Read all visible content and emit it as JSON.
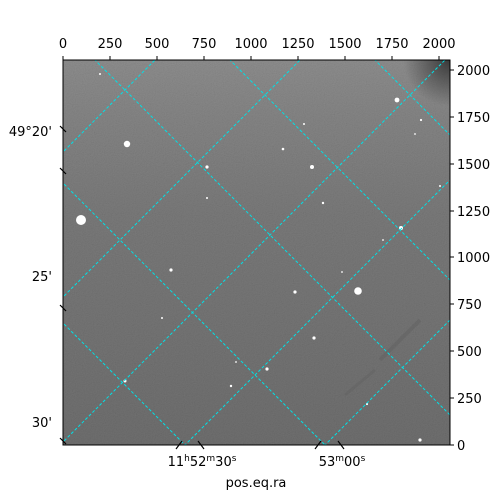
{
  "image": {
    "description_free": true,
    "colors": {
      "grid": "#00e0e6",
      "frame": "#000000",
      "background": "#ffffff"
    }
  },
  "axes": {
    "xlabel_bottom": "pos.eq.ra",
    "top_ticks": [
      "0",
      "250",
      "500",
      "750",
      "1000",
      "1250",
      "1500",
      "1750",
      "2000"
    ],
    "right_ticks": [
      "2000",
      "1750",
      "1500",
      "1250",
      "1000",
      "750",
      "500",
      "250",
      "0"
    ],
    "left_ticks": [
      "49°20'",
      "25'",
      "30'"
    ],
    "bottom_ticks": [
      {
        "hours": "11",
        "minutes": "52",
        "seconds": "30"
      },
      {
        "minutes": "53",
        "seconds": "00"
      }
    ]
  }
}
